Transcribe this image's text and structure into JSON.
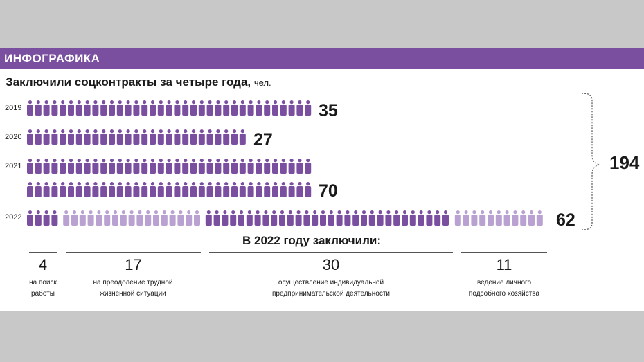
{
  "banner": "ИНФОГРАФИКА",
  "title": "Заключили соцконтракты за четыре года,",
  "title_unit": "чел.",
  "subtitle": "В 2022 году заключили:",
  "colors": {
    "banner": "#7b4fa0",
    "dark_person": "#7b4fa0",
    "light_person": "#b9a2d1",
    "background": "#c8c8c8"
  },
  "icon": "person-icon",
  "chart_data": {
    "type": "bar",
    "categories": [
      "2019",
      "2020",
      "2021",
      "2022"
    ],
    "values": [
      35,
      27,
      70,
      62
    ],
    "value_labels": [
      "35",
      "27",
      "70",
      "62"
    ],
    "total": 194,
    "total_label": "194",
    "breakdown_2022": [
      {
        "value": 4,
        "value_label": "4",
        "label_lines": [
          "на поиск",
          "работы"
        ]
      },
      {
        "value": 17,
        "value_label": "17",
        "label_lines": [
          "на преодоление трудной",
          "жизненной ситуации"
        ]
      },
      {
        "value": 30,
        "value_label": "30",
        "label_lines": [
          "осуществление индивидуальной",
          "предпринимательской деятельности"
        ]
      },
      {
        "value": 11,
        "value_label": "11",
        "label_lines": [
          "ведение личного",
          "подсобного хозяйства"
        ]
      }
    ]
  }
}
